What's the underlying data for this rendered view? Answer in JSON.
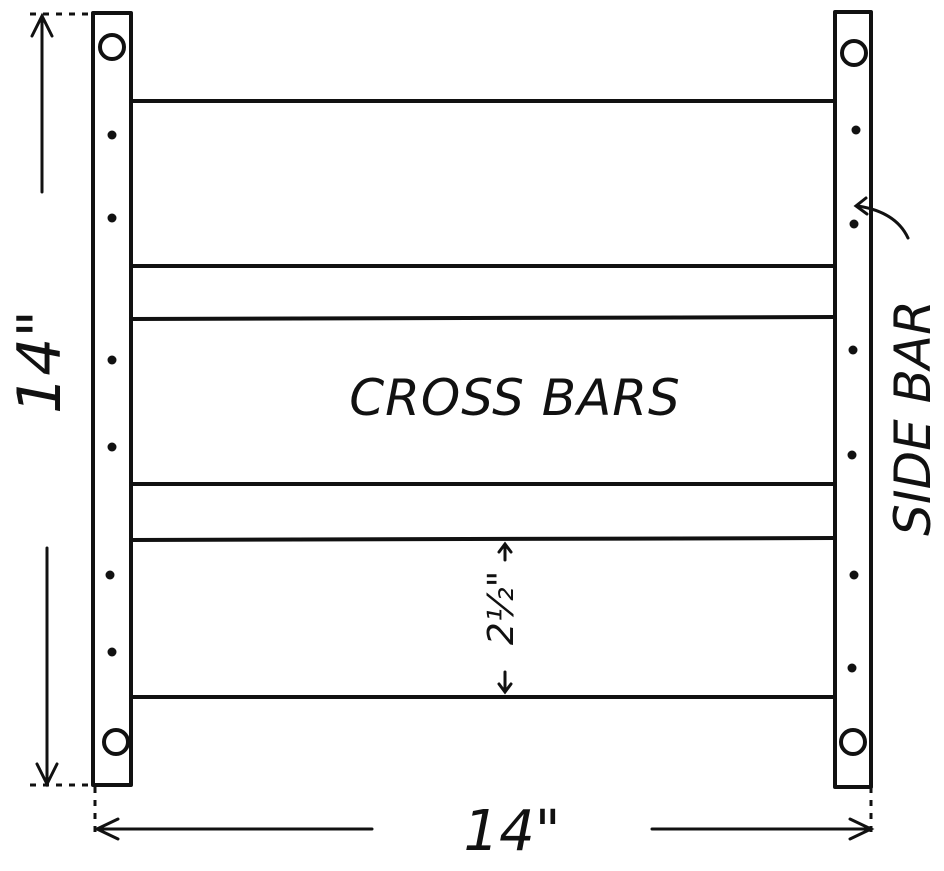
{
  "diagram": {
    "label_cross_bars": "CROSS BARS",
    "label_side_bar": "SIDE BAR",
    "dim_height": "14\"",
    "dim_width": "14\"",
    "dim_spacing": "2½\"",
    "colors": {
      "ink": "#111111",
      "paper": "#ffffff"
    }
  }
}
